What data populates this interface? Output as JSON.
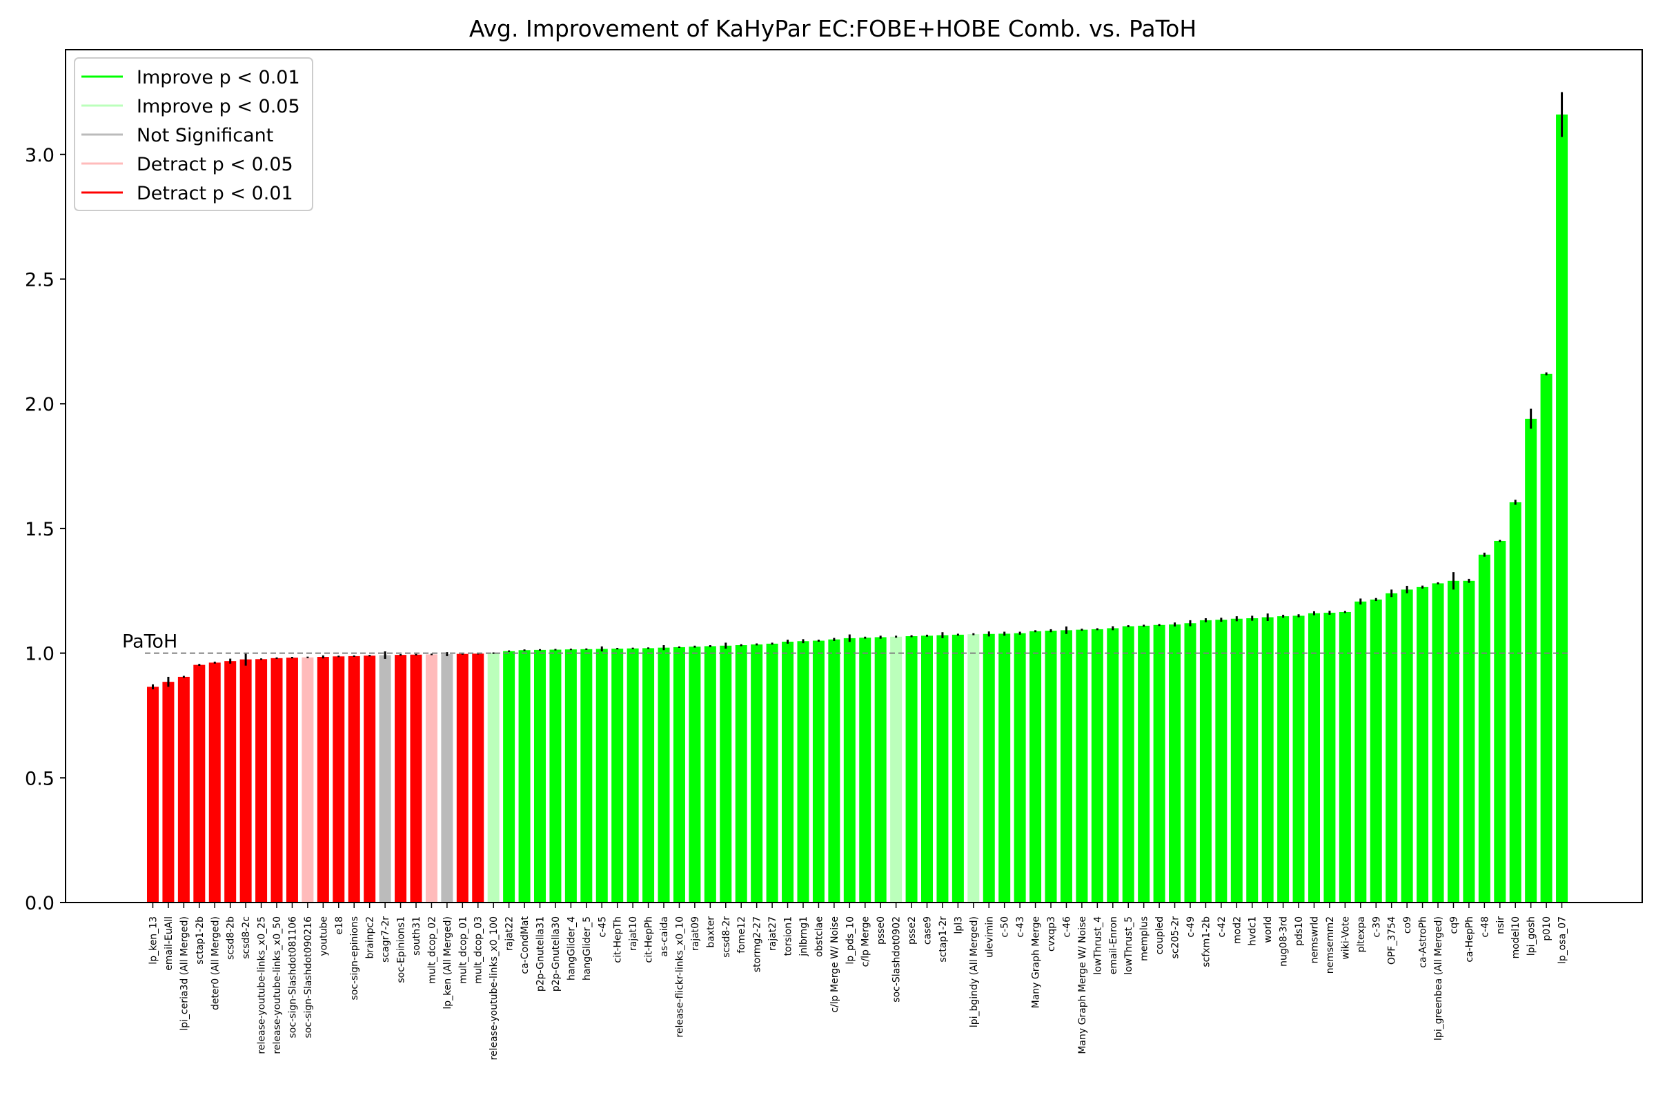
{
  "chart_data": {
    "type": "bar",
    "title": "Avg. Improvement of KaHyPar EC:FOBE+HOBE Comb. vs. PaToH",
    "xlabel": "",
    "ylabel": "",
    "ylim": [
      0,
      3.42
    ],
    "yticks": [
      "0.0",
      "0.5",
      "1.0",
      "1.5",
      "2.0",
      "2.5",
      "3.0"
    ],
    "grid": false,
    "legend_position": "top-left",
    "reference": {
      "label": "PaToH",
      "value": 1.0,
      "color": "#808080"
    },
    "colors": {
      "improve_01": "#00ff00",
      "improve_05": "#bbffbb",
      "not_significant": "#bbbbbb",
      "detract_05": "#ffbbbb",
      "detract_01": "#ff0000"
    },
    "legend": [
      {
        "label": "Improve p < 0.01",
        "color": "#00ff00"
      },
      {
        "label": "Improve p < 0.05",
        "color": "#bbffbb"
      },
      {
        "label": "Not Significant",
        "color": "#bbbbbb"
      },
      {
        "label": "Detract p < 0.05",
        "color": "#ffbbbb"
      },
      {
        "label": "Detract p < 0.01",
        "color": "#ff0000"
      }
    ],
    "categories": [
      "lp_ken_13",
      "email-EuAll",
      "lpi_ceria3d (All Merged)",
      "sctap1-2b",
      "deter0 (All Merged)",
      "scsd8-2b",
      "scsd8-2c",
      "release-youtube-links_x0_25",
      "release-youtube-links_x0_50",
      "soc-sign-Slashdot081106",
      "soc-sign-Slashdot090216",
      "youtube",
      "e18",
      "soc-sign-epinions",
      "brainpc2",
      "scagr7-2r",
      "soc-Epinions1",
      "south31",
      "mult_dcop_02",
      "lp_ken (All Merged)",
      "mult_dcop_01",
      "mult_dcop_03",
      "release-youtube-links_x0_100",
      "rajat22",
      "ca-CondMat",
      "p2p-Gnutella31",
      "p2p-Gnutella30",
      "hangGlider_4",
      "hangGlider_5",
      "c-45",
      "cit-HepTh",
      "rajat10",
      "cit-HepPh",
      "as-caida",
      "release-flickr-links_x0_10",
      "rajat09",
      "baxter",
      "scsd8-2r",
      "fome12",
      "stormg2-27",
      "rajat27",
      "torsion1",
      "jnlbrng1",
      "obstclae",
      "c/lp Merge W/ Noise",
      "lp_pds_10",
      "c/lp Merge",
      "psse0",
      "soc-Slashdot0902",
      "psse2",
      "case9",
      "sctap1-2r",
      "lpl3",
      "lpi_bgindy (All Merged)",
      "ulevimin",
      "c-50",
      "c-43",
      "Many Graph Merge",
      "cvxqp3",
      "c-46",
      "Many Graph Merge W/ Noise",
      "lowThrust_4",
      "email-Enron",
      "lowThrust_5",
      "memplus",
      "coupled",
      "sc205-2r",
      "c-49",
      "scfxm1-2b",
      "c-42",
      "mod2",
      "hvdc1",
      "world",
      "nug08-3rd",
      "pds10",
      "nemswrld",
      "nemsemm2",
      "wiki-Vote",
      "pltexpa",
      "c-39",
      "OPF_3754",
      "co9",
      "ca-AstroPh",
      "lpi_greenbea (All Merged)",
      "cq9",
      "ca-HepPh",
      "c-48",
      "nsir",
      "model10",
      "lpi_gosh",
      "p010",
      "lp_osa_07"
    ],
    "values": [
      0.865,
      0.885,
      0.905,
      0.953,
      0.962,
      0.968,
      0.975,
      0.976,
      0.98,
      0.982,
      0.983,
      0.985,
      0.987,
      0.988,
      0.99,
      0.992,
      0.993,
      0.994,
      0.995,
      0.996,
      0.997,
      0.998,
      1.0,
      1.008,
      1.012,
      1.013,
      1.014,
      1.015,
      1.016,
      1.017,
      1.018,
      1.019,
      1.02,
      1.022,
      1.024,
      1.026,
      1.028,
      1.03,
      1.032,
      1.035,
      1.038,
      1.046,
      1.048,
      1.05,
      1.055,
      1.06,
      1.062,
      1.064,
      1.066,
      1.068,
      1.07,
      1.072,
      1.074,
      1.076,
      1.077,
      1.078,
      1.08,
      1.088,
      1.09,
      1.092,
      1.094,
      1.096,
      1.1,
      1.108,
      1.11,
      1.113,
      1.115,
      1.12,
      1.132,
      1.134,
      1.138,
      1.14,
      1.144,
      1.148,
      1.15,
      1.16,
      1.162,
      1.165,
      1.207,
      1.215,
      1.24,
      1.255,
      1.265,
      1.28,
      1.29,
      1.29,
      1.395,
      1.45,
      1.605,
      1.94,
      2.12,
      3.16
    ],
    "errors": [
      0.01,
      0.02,
      0.004,
      0.004,
      0.004,
      0.01,
      0.025,
      0.003,
      0.003,
      0.003,
      0.003,
      0.006,
      0.003,
      0.003,
      0.003,
      0.015,
      0.003,
      0.003,
      0.003,
      0.008,
      0.003,
      0.003,
      0.003,
      0.003,
      0.003,
      0.003,
      0.003,
      0.003,
      0.003,
      0.01,
      0.003,
      0.003,
      0.003,
      0.01,
      0.003,
      0.004,
      0.004,
      0.012,
      0.004,
      0.004,
      0.004,
      0.008,
      0.008,
      0.004,
      0.006,
      0.015,
      0.004,
      0.006,
      0.004,
      0.004,
      0.004,
      0.012,
      0.004,
      0.004,
      0.01,
      0.008,
      0.006,
      0.004,
      0.006,
      0.015,
      0.004,
      0.004,
      0.008,
      0.004,
      0.004,
      0.004,
      0.008,
      0.012,
      0.008,
      0.008,
      0.01,
      0.01,
      0.015,
      0.006,
      0.006,
      0.008,
      0.008,
      0.004,
      0.012,
      0.006,
      0.015,
      0.015,
      0.006,
      0.004,
      0.035,
      0.008,
      0.008,
      0.004,
      0.01,
      0.04,
      0.006,
      0.09
    ],
    "significance": [
      "detract_01",
      "detract_01",
      "detract_01",
      "detract_01",
      "detract_01",
      "detract_01",
      "detract_01",
      "detract_01",
      "detract_01",
      "detract_01",
      "detract_05",
      "detract_01",
      "detract_01",
      "detract_01",
      "detract_01",
      "not_significant",
      "detract_01",
      "detract_01",
      "detract_05",
      "not_significant",
      "detract_01",
      "detract_01",
      "improve_05",
      "improve_01",
      "improve_01",
      "improve_01",
      "improve_01",
      "improve_01",
      "improve_01",
      "improve_01",
      "improve_01",
      "improve_01",
      "improve_01",
      "improve_01",
      "improve_01",
      "improve_01",
      "improve_01",
      "improve_01",
      "improve_01",
      "improve_01",
      "improve_01",
      "improve_01",
      "improve_01",
      "improve_01",
      "improve_01",
      "improve_01",
      "improve_01",
      "improve_01",
      "improve_05",
      "improve_01",
      "improve_01",
      "improve_01",
      "improve_01",
      "improve_05",
      "improve_01",
      "improve_01",
      "improve_01",
      "improve_01",
      "improve_01",
      "improve_01",
      "improve_01",
      "improve_01",
      "improve_01",
      "improve_01",
      "improve_01",
      "improve_01",
      "improve_01",
      "improve_01",
      "improve_01",
      "improve_01",
      "improve_01",
      "improve_01",
      "improve_01",
      "improve_01",
      "improve_01",
      "improve_01",
      "improve_01",
      "improve_01",
      "improve_01",
      "improve_01",
      "improve_01",
      "improve_01",
      "improve_01",
      "improve_01",
      "improve_01",
      "improve_01",
      "improve_01",
      "improve_01",
      "improve_01",
      "improve_01",
      "improve_01",
      "improve_01"
    ]
  }
}
